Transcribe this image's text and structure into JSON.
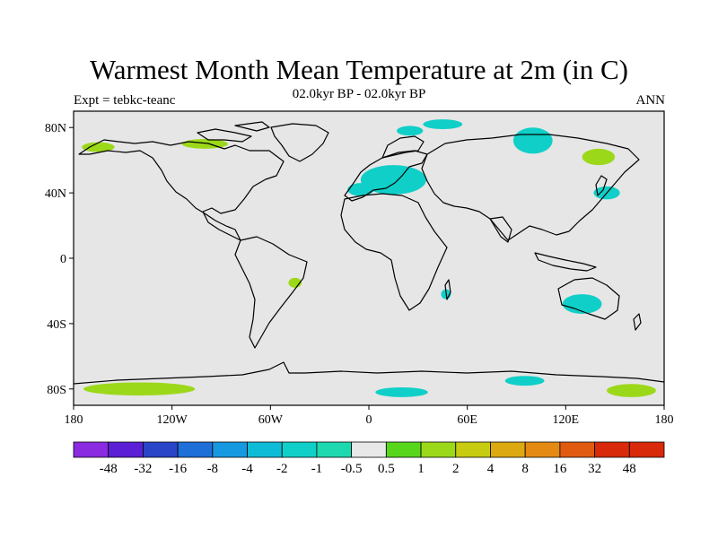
{
  "title": "Warmest Month Mean Temperature at 2m (in C)",
  "subtitle": "02.0kyr BP - 02.0kyr BP",
  "left_label": "Expt = tebkc-teanc",
  "right_label": "ANN",
  "map": {
    "background_color": "#e6e6e6",
    "projection": "cylindrical-equidistant",
    "lon_range": [
      -180,
      180
    ],
    "lat_range": [
      -90,
      90
    ]
  },
  "axes": {
    "x_ticks": [
      {
        "value": -180,
        "label": "180"
      },
      {
        "value": -120,
        "label": "120W"
      },
      {
        "value": -60,
        "label": "60W"
      },
      {
        "value": 0,
        "label": "0"
      },
      {
        "value": 60,
        "label": "60E"
      },
      {
        "value": 120,
        "label": "120E"
      },
      {
        "value": 180,
        "label": "180"
      }
    ],
    "y_ticks": [
      {
        "value": 80,
        "label": "80N"
      },
      {
        "value": 40,
        "label": "40N"
      },
      {
        "value": 0,
        "label": "0"
      },
      {
        "value": -40,
        "label": "40S"
      },
      {
        "value": -80,
        "label": "80S"
      }
    ]
  },
  "colorbar": {
    "labels": [
      "-48",
      "-32",
      "-16",
      "-8",
      "-4",
      "-2",
      "-1",
      "-0.5",
      "0.5",
      "1",
      "2",
      "4",
      "8",
      "16",
      "32",
      "48"
    ],
    "colors": [
      "#8a2be2",
      "#5b1fd6",
      "#2a45c8",
      "#1e6fd8",
      "#1699e0",
      "#0fbcd8",
      "#10cfc8",
      "#1ed9b0",
      "#e8e8e8",
      "#58d61c",
      "#9cd81a",
      "#c8cc10",
      "#dcaa10",
      "#e48a12",
      "#e05a10",
      "#d82a0a"
    ]
  },
  "chart_data": {
    "type": "heatmap",
    "field": "Warmest Month Mean Temperature at 2m (in C)",
    "contour_levels": [
      -48,
      -32,
      -16,
      -8,
      -4,
      -2,
      -1,
      -0.5,
      0.5,
      1,
      2,
      4,
      8,
      16,
      32,
      48
    ],
    "regions": [
      {
        "name": "arctic-canada",
        "lon": -100,
        "lat": 70,
        "rlon": 14,
        "rlat": 3,
        "value": 1.5
      },
      {
        "name": "alaska-coast",
        "lon": -165,
        "lat": 68,
        "rlon": 10,
        "rlat": 3,
        "value": 1.5
      },
      {
        "name": "europe",
        "lon": 15,
        "lat": 48,
        "rlon": 20,
        "rlat": 9,
        "value": -1
      },
      {
        "name": "nw-africa",
        "lon": -5,
        "lat": 42,
        "rlon": 8,
        "rlat": 4,
        "value": -1
      },
      {
        "name": "svalbard",
        "lon": 25,
        "lat": 78,
        "rlon": 8,
        "rlat": 3,
        "value": -1
      },
      {
        "name": "arctic-ocean-east",
        "lon": 45,
        "lat": 82,
        "rlon": 12,
        "rlat": 3,
        "value": -1
      },
      {
        "name": "siberia",
        "lon": 100,
        "lat": 72,
        "rlon": 12,
        "rlat": 8,
        "value": -1
      },
      {
        "name": "east-siberia",
        "lon": 140,
        "lat": 62,
        "rlon": 10,
        "rlat": 5,
        "value": 1.5
      },
      {
        "name": "east-asia",
        "lon": 145,
        "lat": 40,
        "rlon": 8,
        "rlat": 4,
        "value": -1
      },
      {
        "name": "south-america-south",
        "lon": -45,
        "lat": -15,
        "rlon": 4,
        "rlat": 3,
        "value": 1.5
      },
      {
        "name": "madagascar",
        "lon": 47,
        "lat": -22,
        "rlon": 3,
        "rlat": 3,
        "value": -1
      },
      {
        "name": "australia",
        "lon": 130,
        "lat": -28,
        "rlon": 12,
        "rlat": 6,
        "value": -1
      },
      {
        "name": "antarctica-west",
        "lon": -140,
        "lat": -80,
        "rlon": 34,
        "rlat": 4,
        "value": 1.5
      },
      {
        "name": "antarctica-east",
        "lon": 160,
        "lat": -81,
        "rlon": 15,
        "rlat": 4,
        "value": 1.5
      },
      {
        "name": "antarctica-center",
        "lon": 20,
        "lat": -82,
        "rlon": 16,
        "rlat": 3,
        "value": -1
      },
      {
        "name": "antarctica-ross",
        "lon": 95,
        "lat": -75,
        "rlon": 12,
        "rlat": 3,
        "value": -1
      }
    ]
  }
}
